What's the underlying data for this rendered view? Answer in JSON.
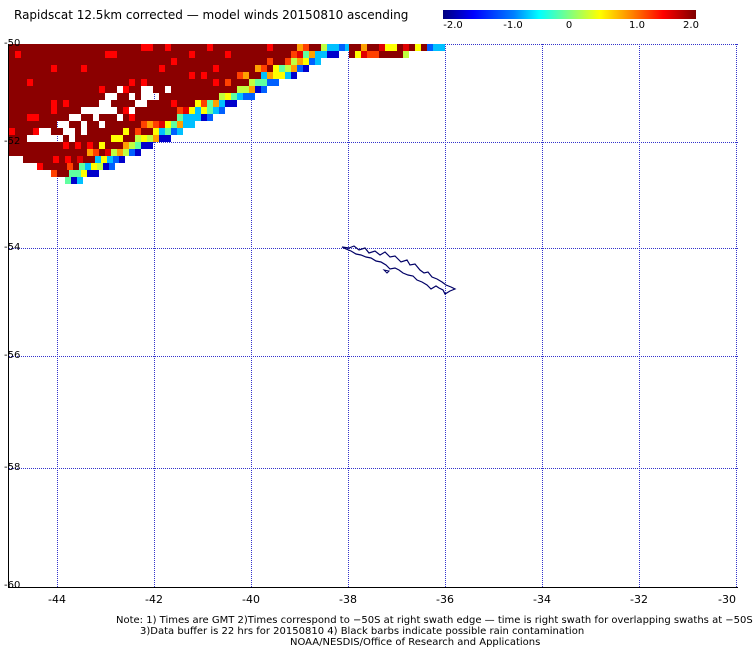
{
  "title": "Rapidscat 12.5km corrected — model winds 20150810 ascending",
  "colorbar": {
    "ticks": [
      "-2.0",
      "-1.0",
      "0",
      "1.0",
      "2.0"
    ],
    "min": -2.0,
    "max": 2.0
  },
  "map": {
    "lat_labels": [
      "-50",
      "-52",
      "-54",
      "-56",
      "-58",
      "-60"
    ],
    "lon_labels": [
      "-44",
      "-42",
      "-40",
      "-38",
      "-36",
      "-34",
      "-32",
      "-30"
    ]
  },
  "notes": {
    "line1": "Note: 1) Times are GMT 2)Times correspond to −50S at right swath edge — time is right swath for overlapping swaths at −50S",
    "line2": "3)Data buffer is 22 hrs for 20150810 4) Black barbs indicate possible rain contamination",
    "line3": "NOAA/NESDIS/Office of Research and Applications"
  },
  "colors": {
    "grid": "#3333cc",
    "coastline": "#000066",
    "max_wind": "#8b0000"
  }
}
